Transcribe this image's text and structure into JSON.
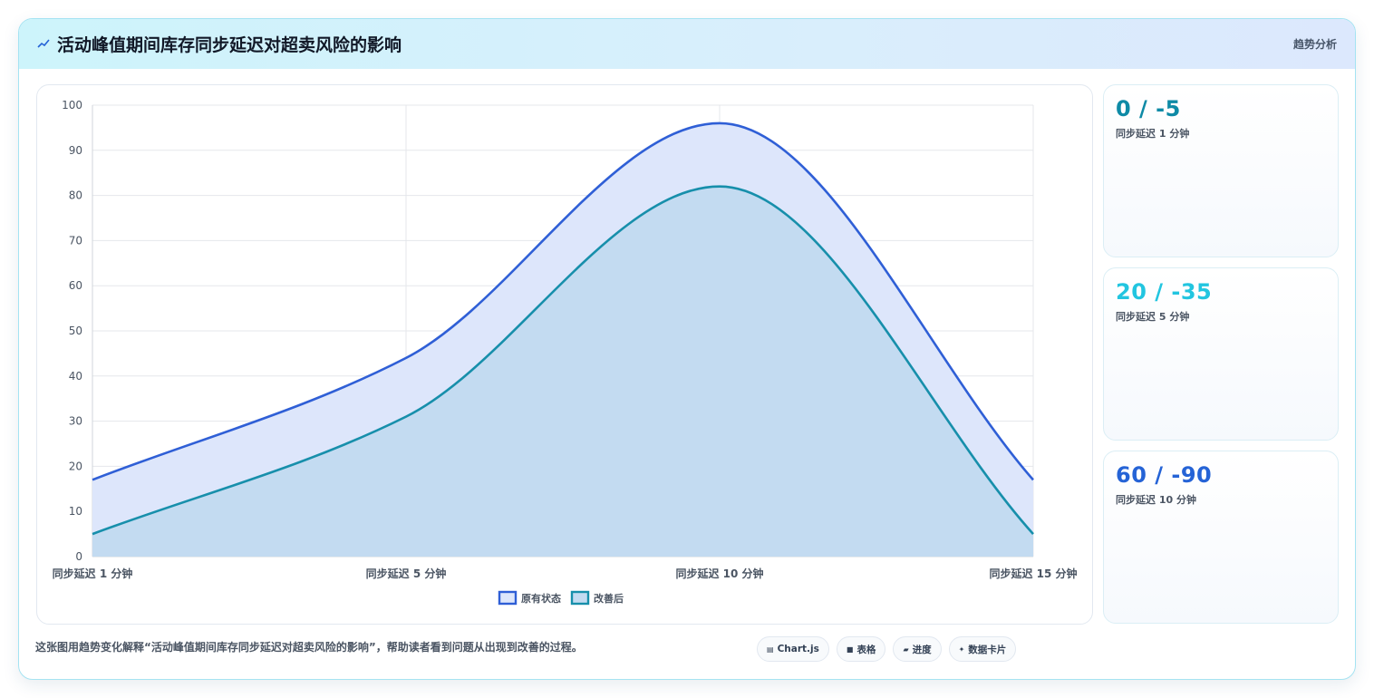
{
  "header": {
    "title_icon": "sparkline-icon",
    "title": "活动峰值期间库存同步延迟对超卖风险的影响",
    "tag": "趋势分析"
  },
  "chart_data": {
    "type": "area",
    "categories": [
      "同步延迟 1 分钟",
      "同步延迟 5 分钟",
      "同步延迟 10 分钟",
      "同步延迟 15 分钟"
    ],
    "series": [
      {
        "name": "原有状态",
        "values": [
          17,
          44,
          96,
          17
        ],
        "color": "#2f5fd6",
        "fill": "#dde6fb"
      },
      {
        "name": "改善后",
        "values": [
          5,
          31,
          82,
          5
        ],
        "color": "#178fab",
        "fill": "#c3dbf1"
      }
    ],
    "ylim": [
      0,
      100
    ],
    "yticks": [
      0,
      10,
      20,
      30,
      40,
      50,
      60,
      70,
      80,
      90,
      100
    ],
    "grid": true,
    "legend": "bottom"
  },
  "side_cards": [
    {
      "value": "0 / -5",
      "label": "同步延迟 1 分钟",
      "color": "#0e8aa6"
    },
    {
      "value": "20 / -35",
      "label": "同步延迟 5 分钟",
      "color": "#22c5e0"
    },
    {
      "value": "60 / -90",
      "label": "同步延迟 10 分钟",
      "color": "#2563d6"
    }
  ],
  "footer": {
    "description": "这张图用趋势变化解释“活动峰值期间库存同步延迟对超卖风险的影响”，帮助读者看到问题从出现到改善的过程。",
    "chips": [
      {
        "icon": "chart-icon",
        "glyph": "▤",
        "label": "Chart.js"
      },
      {
        "icon": "table-icon",
        "glyph": "■",
        "label": "表格"
      },
      {
        "icon": "progress-icon",
        "glyph": "▰",
        "label": "进度"
      },
      {
        "icon": "card-icon",
        "glyph": "✦",
        "label": "数据卡片"
      }
    ]
  }
}
